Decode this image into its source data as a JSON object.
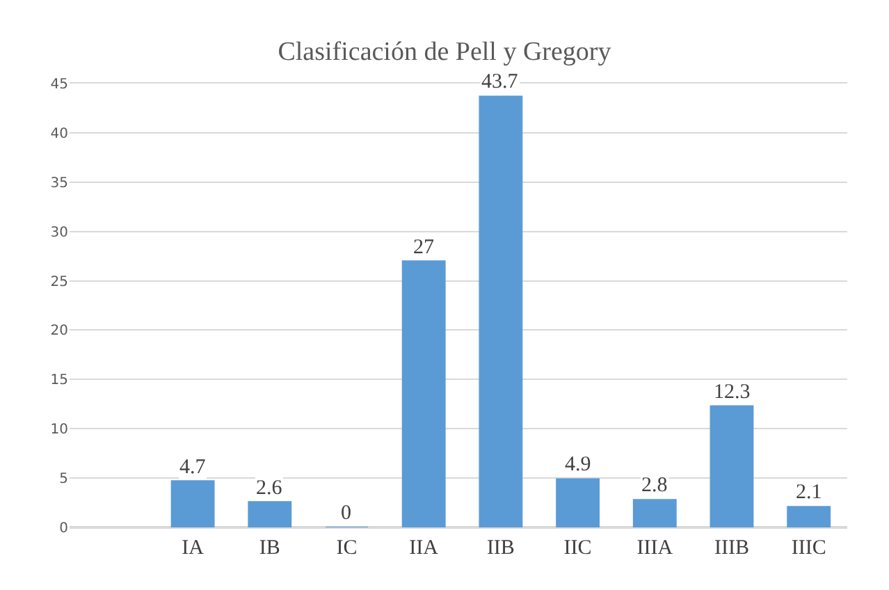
{
  "chart_data": {
    "type": "bar",
    "title": "Clasificación de Pell y Gregory",
    "categories": [
      "IA",
      "IB",
      "IC",
      "IIA",
      "IIB",
      "IIC",
      "IIIA",
      "IIIB",
      "IIIC"
    ],
    "values": [
      4.7,
      2.6,
      0,
      27,
      43.7,
      4.9,
      2.8,
      12.3,
      2.1
    ],
    "color": "#5b9bd5",
    "ylim": [
      0,
      45
    ],
    "yticks": [
      0,
      5,
      10,
      15,
      20,
      25,
      30,
      35,
      40,
      45
    ],
    "grid": "y",
    "data_labels": true,
    "legend": false
  }
}
